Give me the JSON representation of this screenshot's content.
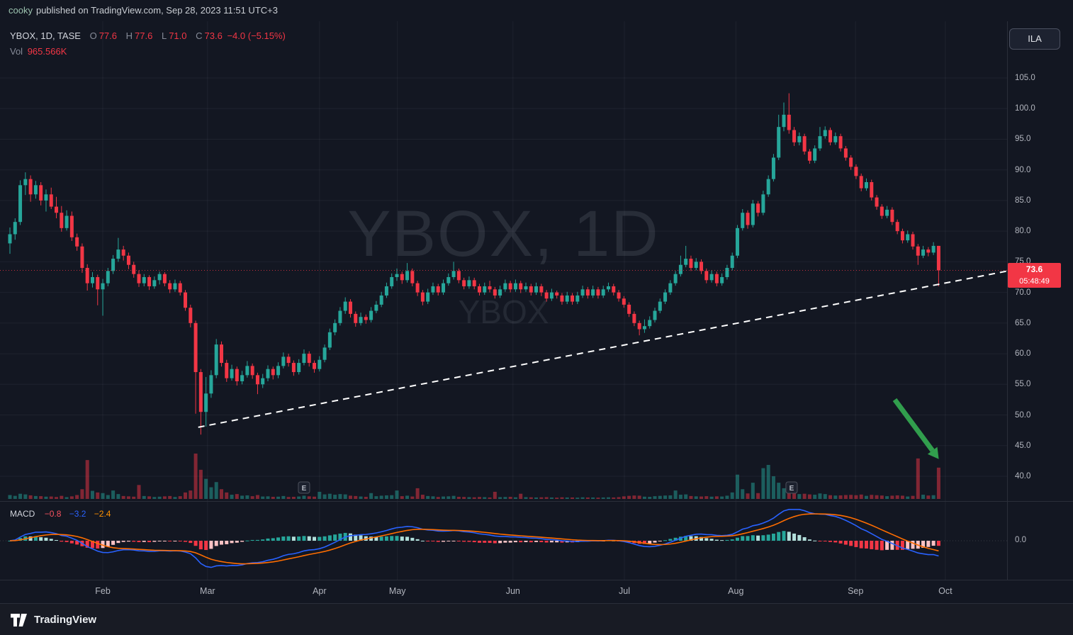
{
  "publish_bar": {
    "user": "cooky",
    "text": "published on TradingView.com, Sep 28, 2023 11:51 UTC+3"
  },
  "legend": {
    "symbol": "YBOX, 1D, TASE",
    "o_key": "O",
    "o": "77.6",
    "h_key": "H",
    "h": "77.6",
    "l_key": "L",
    "l": "71.0",
    "c_key": "C",
    "c": "73.6",
    "change": "−4.0 (−5.15%)",
    "vol_key": "Vol",
    "vol": "965.566K"
  },
  "macd_legend": {
    "title": "MACD",
    "hist": "−0.8",
    "macd": "−3.2",
    "signal": "−2.4"
  },
  "watermark": {
    "line1": "YBOX, 1D",
    "line2": "YBOX"
  },
  "right_panel": {
    "currency": "ILA",
    "last_price": "73.6",
    "countdown": "05:48:49",
    "zero": "0.0"
  },
  "bottom_bar": {
    "brand": "TradingView"
  },
  "colors": {
    "background": "#131722",
    "up": "#26a69a",
    "down": "#f23645",
    "macd_line": "#2962ff",
    "signal_line": "#ff6d00",
    "hist_up_grow": "#26a69a",
    "hist_up_fall": "#b2dfdb",
    "hist_down_fall": "#f23645",
    "hist_down_grow": "#fbc2c4",
    "trendline": "#ffffff",
    "arrow": "#319e4d",
    "grid": "rgba(240,243,250,0.055)",
    "price_badge": "#f23645"
  },
  "chart_data": {
    "type": "candlestick",
    "symbol": "YBOX",
    "interval": "1D",
    "exchange": "TASE",
    "panes": [
      "price+volume",
      "macd"
    ],
    "ohlc_current": {
      "open": 77.6,
      "high": 77.6,
      "low": 71.0,
      "close": 73.6,
      "change": -4.0,
      "change_pct": -5.15
    },
    "volume_current_display": "965.566K",
    "price_line": 73.6,
    "countdown": "05:48:49",
    "price_ticks": [
      105,
      100,
      95,
      90,
      85,
      80,
      75,
      70,
      65,
      60,
      55,
      50,
      45,
      40
    ],
    "months": [
      {
        "label": "Feb",
        "i": 18.0
      },
      {
        "label": "Mar",
        "i": 38.3
      },
      {
        "label": "Apr",
        "i": 60.0
      },
      {
        "label": "May",
        "i": 75.1
      },
      {
        "label": "Jun",
        "i": 97.5
      },
      {
        "label": "Jul",
        "i": 119.1
      },
      {
        "label": "Aug",
        "i": 140.7
      },
      {
        "label": "Sep",
        "i": 163.9
      },
      {
        "label": "Oct",
        "i": 181.3
      }
    ],
    "vol_max_k": 1400,
    "macd": {
      "fast": 12,
      "slow": 26,
      "signal": 9,
      "display": [
        -0.8,
        -3.2,
        -2.4
      ]
    },
    "trendline": {
      "i1": 36.5,
      "p1": 48.0,
      "i2": 193.4,
      "p2": 73.5
    },
    "arrow": {
      "i1": 171.5,
      "p1": 52.5,
      "i2": 178.8,
      "p2": 44.2
    },
    "earnings_markers": [
      57,
      151.5
    ],
    "candles": [
      [
        78,
        80.6,
        76.3,
        79.5,
        120
      ],
      [
        79.5,
        82.1,
        78.6,
        81.5,
        95
      ],
      [
        81.5,
        88.3,
        81,
        87.5,
        160
      ],
      [
        87.5,
        89.6,
        85.9,
        88.5,
        140
      ],
      [
        88.5,
        89.1,
        84.8,
        86,
        110
      ],
      [
        86,
        88.2,
        85.3,
        87.5,
        90
      ],
      [
        87.5,
        88,
        84.2,
        85,
        85
      ],
      [
        85,
        86.8,
        83.2,
        86,
        70
      ],
      [
        86,
        87.1,
        83.6,
        84,
        75
      ],
      [
        84,
        85.6,
        82.1,
        83,
        60
      ],
      [
        83,
        84.1,
        79.9,
        80.5,
        95
      ],
      [
        80.5,
        83.4,
        80.1,
        82.5,
        55
      ],
      [
        82.5,
        83.2,
        78.4,
        79,
        80
      ],
      [
        79,
        79.6,
        76.8,
        77.5,
        120
      ],
      [
        77.5,
        78,
        73.2,
        74,
        300
      ],
      [
        74,
        74.6,
        70.3,
        71.5,
        1200
      ],
      [
        71.5,
        73.3,
        70.8,
        72.5,
        250
      ],
      [
        72.5,
        72.9,
        67.9,
        70.5,
        200
      ],
      [
        70.5,
        72.2,
        66.2,
        71.5,
        180
      ],
      [
        71.5,
        74,
        71,
        73.5,
        120
      ],
      [
        73.5,
        76.1,
        73,
        75.5,
        260
      ],
      [
        75.5,
        78.9,
        75,
        77,
        150
      ],
      [
        77,
        77.6,
        75.2,
        76,
        90
      ],
      [
        76,
        76.5,
        73.8,
        74.5,
        80
      ],
      [
        74.5,
        75,
        72.4,
        73,
        70
      ],
      [
        73,
        73.6,
        70.9,
        71.5,
        430
      ],
      [
        71.5,
        73,
        71,
        72.5,
        90
      ],
      [
        72.5,
        72.8,
        70.4,
        71,
        80
      ],
      [
        71,
        72.6,
        70.6,
        72,
        60
      ],
      [
        72,
        73.4,
        71.3,
        73,
        70
      ],
      [
        73,
        73.3,
        71,
        71.5,
        80
      ],
      [
        71.5,
        72,
        69.9,
        70.5,
        90
      ],
      [
        70.5,
        72.1,
        70.1,
        71.5,
        60
      ],
      [
        71.5,
        71.9,
        69.5,
        70,
        85
      ],
      [
        70,
        70.4,
        67,
        67.5,
        200
      ],
      [
        67.5,
        68,
        64.3,
        65,
        260
      ],
      [
        65,
        65.4,
        50.2,
        57,
        1400
      ],
      [
        57,
        57.5,
        46.8,
        50.5,
        900
      ],
      [
        50.5,
        56.2,
        48.1,
        53.5,
        620
      ],
      [
        53.5,
        57.3,
        52.8,
        56.5,
        360
      ],
      [
        56.5,
        62.4,
        56,
        61.5,
        520
      ],
      [
        61.5,
        62,
        57.9,
        58.5,
        300
      ],
      [
        58.5,
        59,
        55.4,
        56,
        200
      ],
      [
        56,
        58.2,
        55.6,
        57.5,
        130
      ],
      [
        57.5,
        57.9,
        54.8,
        55.5,
        150
      ],
      [
        55.5,
        57.2,
        55,
        56.5,
        100
      ],
      [
        56.5,
        58.8,
        56.1,
        58,
        110
      ],
      [
        58,
        58.4,
        55.9,
        56.5,
        85
      ],
      [
        56.5,
        56.9,
        53.4,
        55,
        120
      ],
      [
        55,
        56.7,
        54.4,
        56,
        75
      ],
      [
        56,
        58.1,
        55.5,
        57.5,
        80
      ],
      [
        57.5,
        57.9,
        55.8,
        56.5,
        65
      ],
      [
        56.5,
        58.6,
        56,
        58,
        70
      ],
      [
        58,
        60.2,
        57.6,
        59.5,
        90
      ],
      [
        59.5,
        60,
        57.9,
        58.5,
        60
      ],
      [
        58.5,
        58.9,
        56.4,
        57,
        65
      ],
      [
        57,
        59.1,
        56.6,
        58.5,
        75
      ],
      [
        58.5,
        60.7,
        58.1,
        60,
        100
      ],
      [
        60,
        60.4,
        57.9,
        58.5,
        80
      ],
      [
        58.5,
        58.9,
        56.9,
        57.5,
        70
      ],
      [
        57.5,
        59.6,
        57.1,
        59,
        220
      ],
      [
        59,
        61.5,
        58.6,
        61,
        140
      ],
      [
        61,
        64.1,
        60.6,
        63.5,
        160
      ],
      [
        63.5,
        65.6,
        63,
        65,
        130
      ],
      [
        65,
        67.6,
        64.6,
        67,
        150
      ],
      [
        67,
        69.2,
        66.5,
        68.5,
        140
      ],
      [
        68.5,
        68.9,
        65.9,
        66.5,
        100
      ],
      [
        66.5,
        66.9,
        64.4,
        65,
        90
      ],
      [
        65,
        66.7,
        64.6,
        66,
        75
      ],
      [
        66,
        66.4,
        64.9,
        65.5,
        65
      ],
      [
        65.5,
        67.6,
        65.1,
        67,
        180
      ],
      [
        67,
        68.6,
        66.6,
        68,
        85
      ],
      [
        68,
        70.1,
        67.6,
        69.5,
        100
      ],
      [
        69.5,
        71.6,
        69.1,
        71,
        110
      ],
      [
        71,
        73.1,
        70.6,
        72.5,
        115
      ],
      [
        72.5,
        73.9,
        71.9,
        73,
        260
      ],
      [
        73,
        73.4,
        71.4,
        72,
        85
      ],
      [
        72,
        74.8,
        71.6,
        73.5,
        100
      ],
      [
        73.5,
        73.9,
        71,
        71.5,
        75
      ],
      [
        71.5,
        71.9,
        69.4,
        70,
        330
      ],
      [
        70,
        70.4,
        67.9,
        68.5,
        130
      ],
      [
        68.5,
        70.6,
        68.1,
        70,
        90
      ],
      [
        70,
        71.6,
        69.6,
        71,
        80
      ],
      [
        71,
        71.4,
        69.5,
        70,
        60
      ],
      [
        70,
        72.1,
        69.6,
        71.5,
        75
      ],
      [
        71.5,
        73.1,
        71.1,
        72.5,
        80
      ],
      [
        72.5,
        75,
        72.1,
        73.5,
        95
      ],
      [
        73.5,
        73.9,
        71.5,
        72,
        65
      ],
      [
        72,
        72.4,
        70.5,
        71,
        60
      ],
      [
        71,
        72.6,
        70.6,
        72,
        55
      ],
      [
        72,
        72.4,
        70.5,
        71,
        50
      ],
      [
        71,
        71.4,
        69.5,
        70,
        60
      ],
      [
        70,
        71.6,
        69.6,
        71,
        55
      ],
      [
        71,
        71.9,
        70,
        70.5,
        45
      ],
      [
        70.5,
        70.9,
        69,
        69.5,
        220
      ],
      [
        69.5,
        71.1,
        69.1,
        70.5,
        55
      ],
      [
        70.5,
        72.1,
        70.1,
        71.5,
        60
      ],
      [
        71.5,
        71.9,
        70,
        70.5,
        65
      ],
      [
        70.5,
        72.1,
        70.1,
        71.5,
        50
      ],
      [
        71.5,
        71.9,
        69.9,
        70.5,
        160
      ],
      [
        70.5,
        71.6,
        70.1,
        71,
        55
      ],
      [
        71,
        71.4,
        69.5,
        70,
        50
      ],
      [
        70,
        71.6,
        69.6,
        71,
        45
      ],
      [
        71,
        71.4,
        69.4,
        70,
        50
      ],
      [
        70,
        70.4,
        68.5,
        69,
        55
      ],
      [
        69,
        70.6,
        68.6,
        70,
        45
      ],
      [
        70,
        70.3,
        69,
        69.5,
        40
      ],
      [
        69.5,
        69.9,
        68,
        68.5,
        50
      ],
      [
        68.5,
        70.1,
        68.1,
        69.5,
        45
      ],
      [
        69.5,
        69.9,
        68,
        68.5,
        45
      ],
      [
        68.5,
        70.1,
        68.1,
        69.5,
        40
      ],
      [
        69.5,
        71.1,
        69.1,
        70.5,
        50
      ],
      [
        70.5,
        70.9,
        69,
        69.5,
        45
      ],
      [
        69.5,
        71.1,
        69.1,
        70.5,
        45
      ],
      [
        70.5,
        70.9,
        69,
        69.5,
        40
      ],
      [
        69.5,
        71.1,
        69.1,
        70.5,
        45
      ],
      [
        70.5,
        71.6,
        70.1,
        71,
        50
      ],
      [
        71,
        71.4,
        69.5,
        70,
        45
      ],
      [
        70,
        70.4,
        68.5,
        69,
        55
      ],
      [
        69,
        69.4,
        67.5,
        68,
        80
      ],
      [
        68,
        68.4,
        66,
        66.5,
        95
      ],
      [
        66.5,
        66.9,
        64.5,
        65,
        105
      ],
      [
        65,
        65.4,
        63,
        64,
        100
      ],
      [
        64,
        65.6,
        63.4,
        64.5,
        70
      ],
      [
        64.5,
        66.1,
        64.1,
        65.5,
        65
      ],
      [
        65.5,
        67.5,
        65.1,
        67,
        85
      ],
      [
        67,
        69,
        66.6,
        68.5,
        95
      ],
      [
        68.5,
        70.5,
        68.1,
        70,
        105
      ],
      [
        70,
        72,
        69.6,
        71.5,
        110
      ],
      [
        71.5,
        73.5,
        71.1,
        73,
        260
      ],
      [
        73,
        76,
        72.6,
        74.5,
        130
      ],
      [
        74.5,
        77.6,
        74.1,
        75.5,
        140
      ],
      [
        75.5,
        76,
        73.5,
        74,
        90
      ],
      [
        74,
        75.6,
        73.6,
        75,
        80
      ],
      [
        75,
        75.4,
        73,
        73.5,
        75
      ],
      [
        73.5,
        73.9,
        71.5,
        72,
        85
      ],
      [
        72,
        73.6,
        71.6,
        73,
        70
      ],
      [
        73,
        73.4,
        71,
        71.5,
        80
      ],
      [
        71.5,
        73.1,
        71.1,
        72.5,
        75
      ],
      [
        72.5,
        74.5,
        72.1,
        74,
        100
      ],
      [
        74,
        76.5,
        73.6,
        76,
        200
      ],
      [
        76,
        81,
        75.6,
        80.5,
        750
      ],
      [
        80.5,
        83.6,
        80.1,
        83,
        300
      ],
      [
        83,
        83.4,
        80.4,
        81,
        170
      ],
      [
        81,
        85.1,
        80.6,
        84.5,
        500
      ],
      [
        84.5,
        84.9,
        82.4,
        83,
        180
      ],
      [
        83,
        86.6,
        82.6,
        86,
        950
      ],
      [
        86,
        89.1,
        85.6,
        88.5,
        1050
      ],
      [
        88.5,
        92.6,
        88.1,
        92,
        700
      ],
      [
        92,
        99,
        91.6,
        97,
        500
      ],
      [
        97,
        101,
        96.3,
        99,
        330
      ],
      [
        99,
        102.5,
        95.9,
        96.5,
        360
      ],
      [
        96.5,
        97,
        93.9,
        94.5,
        220
      ],
      [
        94.5,
        96.1,
        94,
        95.5,
        150
      ],
      [
        95.5,
        95.9,
        92.5,
        93,
        160
      ],
      [
        93,
        93.4,
        91,
        91.5,
        140
      ],
      [
        91.5,
        94,
        91.1,
        93.5,
        130
      ],
      [
        93.5,
        97,
        93.1,
        95.5,
        170
      ],
      [
        95.5,
        97.1,
        95.1,
        96.5,
        150
      ],
      [
        96.5,
        96.9,
        94,
        94.5,
        115
      ],
      [
        94.5,
        96.1,
        94.1,
        95.5,
        105
      ],
      [
        95.5,
        95.9,
        93,
        93.5,
        110
      ],
      [
        93.5,
        93.9,
        91.5,
        92,
        120
      ],
      [
        92,
        92.4,
        90,
        90.5,
        125
      ],
      [
        90.5,
        90.9,
        88.5,
        89,
        115
      ],
      [
        89,
        89.4,
        86.5,
        87,
        135
      ],
      [
        87,
        88.6,
        86.6,
        88,
        95
      ],
      [
        88,
        88.4,
        85,
        85.5,
        125
      ],
      [
        85.5,
        85.9,
        83.5,
        84,
        115
      ],
      [
        84,
        84.4,
        82,
        82.5,
        105
      ],
      [
        82.5,
        84.1,
        82.1,
        83.5,
        85
      ],
      [
        83.5,
        83.9,
        81,
        81.5,
        100
      ],
      [
        81.5,
        81.9,
        79.5,
        80,
        110
      ],
      [
        80,
        80.4,
        78,
        78.5,
        100
      ],
      [
        78.5,
        80.1,
        78.1,
        79.5,
        75
      ],
      [
        79.5,
        79.9,
        77,
        77.5,
        95
      ],
      [
        77.5,
        77.9,
        74.5,
        76,
        1250
      ],
      [
        76,
        77.6,
        75.6,
        77,
        130
      ],
      [
        77,
        77.4,
        75.9,
        76.5,
        105
      ],
      [
        76.5,
        78.2,
        76.1,
        77.6,
        115
      ],
      [
        77.6,
        77.6,
        71,
        73.6,
        966
      ]
    ]
  }
}
